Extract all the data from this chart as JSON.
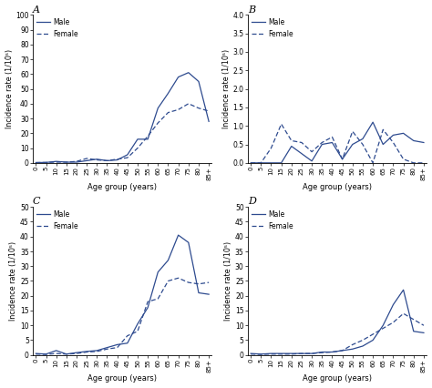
{
  "age_groups": [
    "0",
    "5",
    "10",
    "15",
    "20",
    "25",
    "30",
    "35",
    "40",
    "45",
    "50",
    "55",
    "60",
    "65",
    "70",
    "75",
    "80",
    "85+"
  ],
  "panel_A": {
    "title": "A",
    "male": [
      0.2,
      0.3,
      1.0,
      0.5,
      0.5,
      1.5,
      2.5,
      1.5,
      2.0,
      5.5,
      16.0,
      16.0,
      37.0,
      47.0,
      58.0,
      61.0,
      55.0,
      28.0
    ],
    "female": [
      0.2,
      0.3,
      0.5,
      0.5,
      1.0,
      3.0,
      2.0,
      1.5,
      2.5,
      3.5,
      10.0,
      18.0,
      27.0,
      34.0,
      36.0,
      40.0,
      37.0,
      35.0
    ],
    "ylim": [
      0,
      100
    ],
    "yticks": [
      0,
      10,
      20,
      30,
      40,
      50,
      60,
      70,
      80,
      90,
      100
    ],
    "ylabel": "Incidence rate (1/10⁵)"
  },
  "panel_B": {
    "title": "B",
    "male": [
      0.0,
      0.0,
      0.0,
      0.0,
      0.45,
      0.25,
      0.05,
      0.5,
      0.55,
      0.1,
      0.5,
      0.65,
      1.1,
      0.5,
      0.75,
      0.8,
      0.6,
      0.55
    ],
    "female": [
      0.0,
      0.0,
      0.4,
      1.05,
      0.6,
      0.55,
      0.3,
      0.55,
      0.7,
      0.1,
      0.85,
      0.5,
      0.0,
      0.9,
      0.55,
      0.1,
      0.0,
      0.0
    ],
    "ylim": [
      0,
      4.0
    ],
    "yticks": [
      0.0,
      0.5,
      1.0,
      1.5,
      2.0,
      2.5,
      3.0,
      3.5,
      4.0
    ],
    "ylabel": "Incidence rate (1/10⁵)"
  },
  "panel_C": {
    "title": "C",
    "male": [
      0.5,
      0.3,
      1.5,
      0.3,
      0.8,
      1.2,
      1.5,
      2.5,
      3.5,
      4.0,
      10.5,
      16.0,
      28.0,
      32.0,
      40.5,
      38.0,
      21.0,
      20.5
    ],
    "female": [
      0.3,
      0.2,
      0.5,
      0.3,
      0.5,
      1.0,
      1.2,
      2.0,
      2.5,
      6.5,
      8.0,
      18.0,
      19.0,
      25.0,
      26.0,
      24.5,
      24.0,
      24.5
    ],
    "ylim": [
      0,
      50
    ],
    "yticks": [
      0,
      5,
      10,
      15,
      20,
      25,
      30,
      35,
      40,
      45,
      50
    ],
    "ylabel": "Incidence rate (1/10⁵)"
  },
  "panel_D": {
    "title": "D",
    "male": [
      0.5,
      0.3,
      0.5,
      0.5,
      0.5,
      0.5,
      0.5,
      1.0,
      1.0,
      1.5,
      2.0,
      3.0,
      5.0,
      10.0,
      17.0,
      22.0,
      8.0,
      7.5
    ],
    "female": [
      0.3,
      0.2,
      0.3,
      0.3,
      0.3,
      0.5,
      0.5,
      0.8,
      1.0,
      1.5,
      3.5,
      5.0,
      7.0,
      9.0,
      11.0,
      14.0,
      12.0,
      10.0
    ],
    "ylim": [
      0,
      50
    ],
    "yticks": [
      0,
      5,
      10,
      15,
      20,
      25,
      30,
      35,
      40,
      45,
      50
    ],
    "ylabel": "Incidence rate (1/10⁵)"
  },
  "line_color": "#2E4B8F",
  "xlabel": "Age group (years)",
  "legend_male": "Male",
  "legend_female": "Female"
}
